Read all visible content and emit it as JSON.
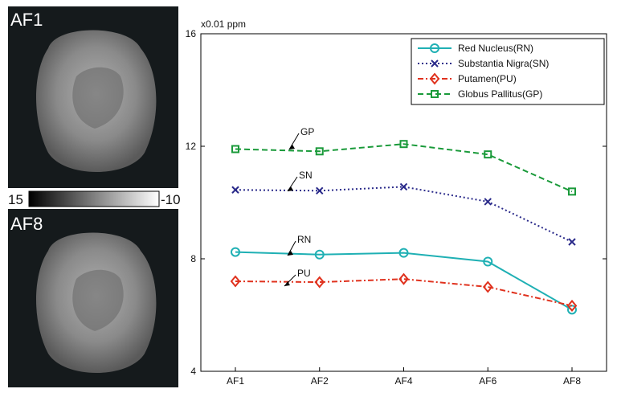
{
  "images": [
    {
      "label": "AF1"
    },
    {
      "label": "AF8"
    }
  ],
  "colorbar": {
    "left": 15,
    "right": -10
  },
  "chart_data": {
    "type": "line",
    "y_label": "x0.01 ppm",
    "categories": [
      "AF1",
      "AF2",
      "AF4",
      "AF6",
      "AF8"
    ],
    "ylim": [
      4,
      16
    ],
    "yticks": [
      4,
      8,
      12,
      16
    ],
    "legend": "upper right",
    "series": [
      {
        "name": "Red Nucleus(RN)",
        "color": "#1fb0b4",
        "marker": "circle",
        "line_style": "solid",
        "values": [
          8.24,
          8.15,
          8.21,
          7.9,
          6.19
        ]
      },
      {
        "name": "Substantia Nigra(SN)",
        "color": "#2a2a8a",
        "marker": "x",
        "line_style": "dotted",
        "values": [
          10.45,
          10.42,
          10.56,
          10.03,
          8.6
        ]
      },
      {
        "name": "Putamen(PU)",
        "color": "#e0321e",
        "marker": "diamond",
        "line_style": "dashdot",
        "values": [
          7.2,
          7.17,
          7.28,
          7.0,
          6.33
        ]
      },
      {
        "name": "Globus Pallitus(GP)",
        "color": "#1a9a3a",
        "marker": "square",
        "line_style": "dashed",
        "values": [
          11.9,
          11.82,
          12.08,
          11.71,
          10.39
        ]
      }
    ],
    "annotations": [
      "GP",
      "SN",
      "RN",
      "PU"
    ]
  }
}
